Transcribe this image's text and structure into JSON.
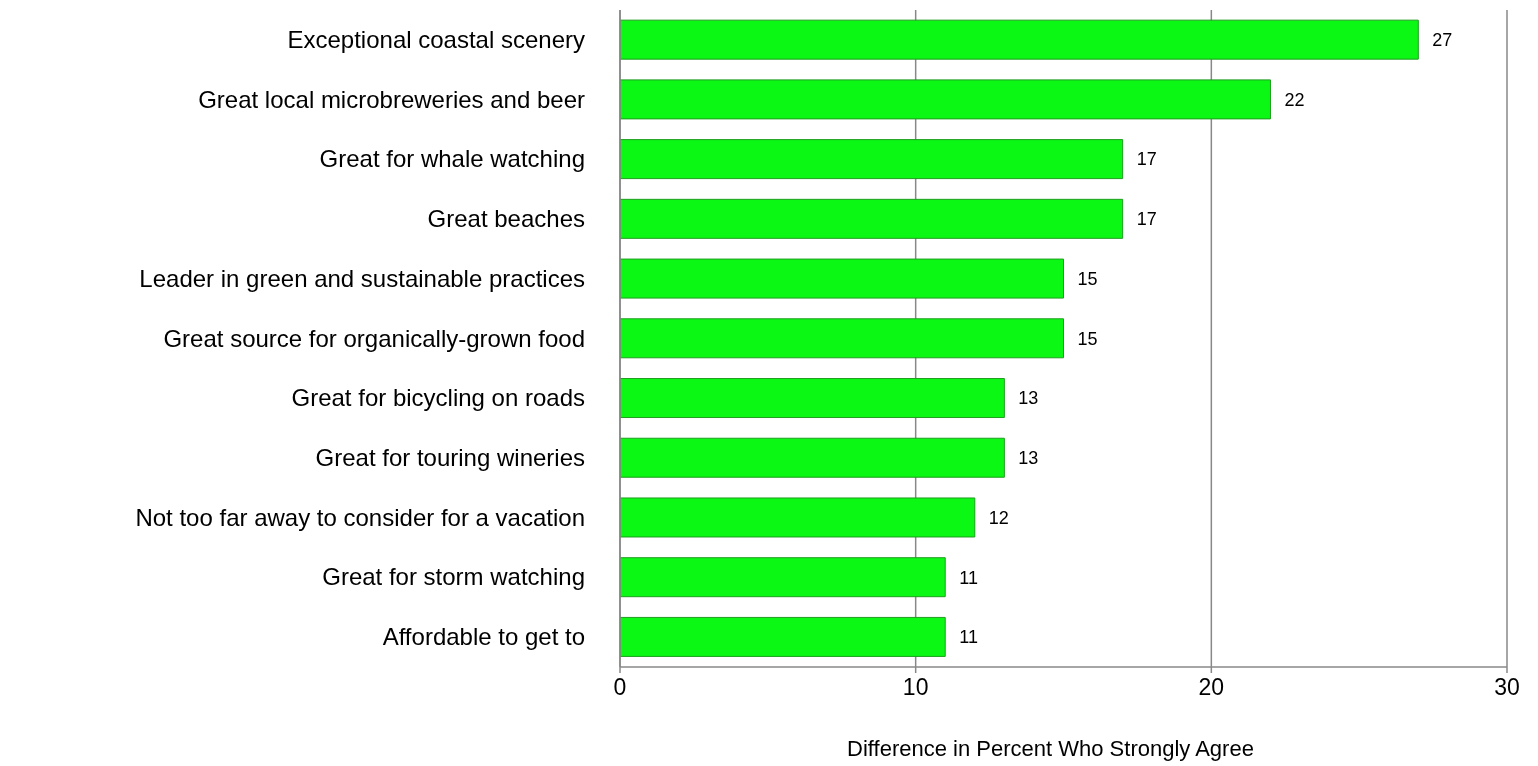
{
  "chart_data": {
    "type": "bar",
    "orientation": "horizontal",
    "categories": [
      "Exceptional coastal scenery",
      "Great local microbreweries and beer",
      "Great for whale watching",
      "Great beaches",
      "Leader in green and sustainable practices",
      "Great source for organically-grown food",
      "Great for bicycling on roads",
      "Great for touring wineries",
      "Not too far away to consider for a vacation",
      "Great for storm watching",
      "Affordable to get to"
    ],
    "values": [
      27,
      22,
      17,
      17,
      15,
      15,
      13,
      13,
      12,
      11,
      11
    ],
    "color": "#0af814",
    "xlabel": "Difference in Percent Who Strongly Agree",
    "xlim": [
      0,
      30
    ],
    "xticks": [
      0,
      10,
      20,
      30
    ],
    "grid": "x",
    "data_labels": true
  }
}
